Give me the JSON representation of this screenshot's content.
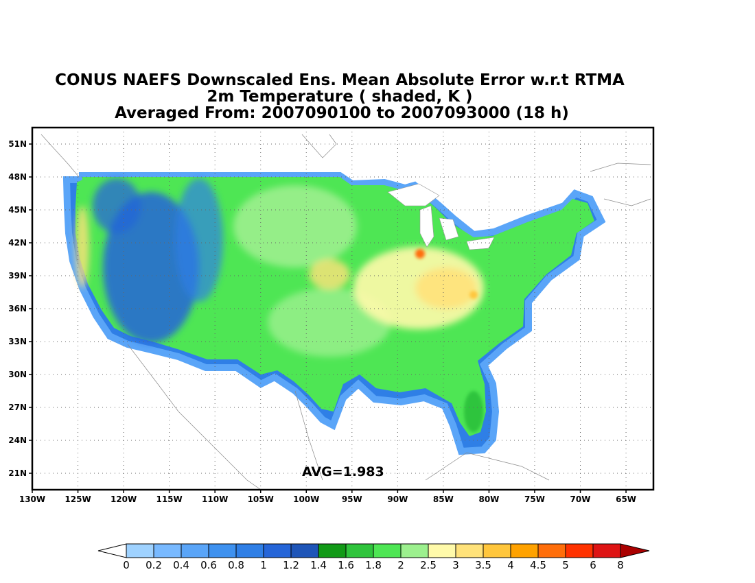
{
  "figure": {
    "title_lines": [
      "CONUS NAEFS Downscaled Ens. Mean Absolute Error w.r.t RTMA",
      "2m Temperature ( shaded, K )",
      "Averaged From: 2007090100 to 2007093000 (18 h)"
    ],
    "avg_label": "AVG=1.983"
  },
  "map": {
    "lon_ticks": [
      "130W",
      "125W",
      "120W",
      "115W",
      "110W",
      "105W",
      "100W",
      "95W",
      "90W",
      "85W",
      "80W",
      "75W",
      "70W",
      "65W"
    ],
    "lat_ticks": [
      "51N",
      "48N",
      "45N",
      "42N",
      "39N",
      "36N",
      "33N",
      "30N",
      "27N",
      "24N",
      "21N"
    ],
    "lon_range": [
      -130,
      -62
    ],
    "lat_range": [
      19.5,
      52.5
    ],
    "grid": true,
    "projection": "latlon"
  },
  "colorbar": {
    "labels": [
      "0",
      "0.2",
      "0.4",
      "0.6",
      "0.8",
      "1",
      "1.2",
      "1.4",
      "1.6",
      "1.8",
      "2",
      "2.5",
      "3",
      "3.5",
      "4",
      "4.5",
      "5",
      "6",
      "8"
    ],
    "colors": [
      "#ffffff",
      "#9fd2ff",
      "#78b9ff",
      "#5aa5f8",
      "#3e91ef",
      "#2f7fe6",
      "#2565d8",
      "#1e55b8",
      "#129a17",
      "#2fc43c",
      "#4ee654",
      "#9cf08e",
      "#fffaaa",
      "#ffe27a",
      "#ffc63c",
      "#ffa200",
      "#ff6e0a",
      "#ff3200",
      "#de1414",
      "#aa0000"
    ],
    "extend": "both"
  }
}
